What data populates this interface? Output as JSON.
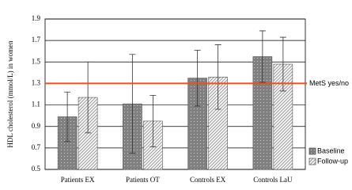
{
  "chart_data": {
    "type": "bar",
    "y_label": "HDL cholesterol (mmol/L) in women",
    "categories": [
      "Patients EX",
      "Patients OT",
      "Controls EX",
      "Controls LaU"
    ],
    "series": [
      {
        "name": "Baseline",
        "color": "#808080",
        "pattern": "dots",
        "values": [
          0.99,
          1.11,
          1.35,
          1.55
        ],
        "errors": [
          0.23,
          0.46,
          0.26,
          0.24
        ]
      },
      {
        "name": "Follow-up",
        "color": "#9a9a9a",
        "pattern": "hatch",
        "values": [
          1.17,
          0.95,
          1.36,
          1.48
        ],
        "errors": [
          0.33,
          0.24,
          0.3,
          0.25
        ]
      }
    ],
    "reference_line": {
      "value": 1.3,
      "label": "MetS yes/no",
      "color": "#e8502a"
    },
    "ylim": [
      0.5,
      1.9
    ],
    "yticks": [
      0.5,
      0.7,
      0.9,
      1.1,
      1.3,
      1.5,
      1.7,
      1.9
    ],
    "grid": true
  }
}
